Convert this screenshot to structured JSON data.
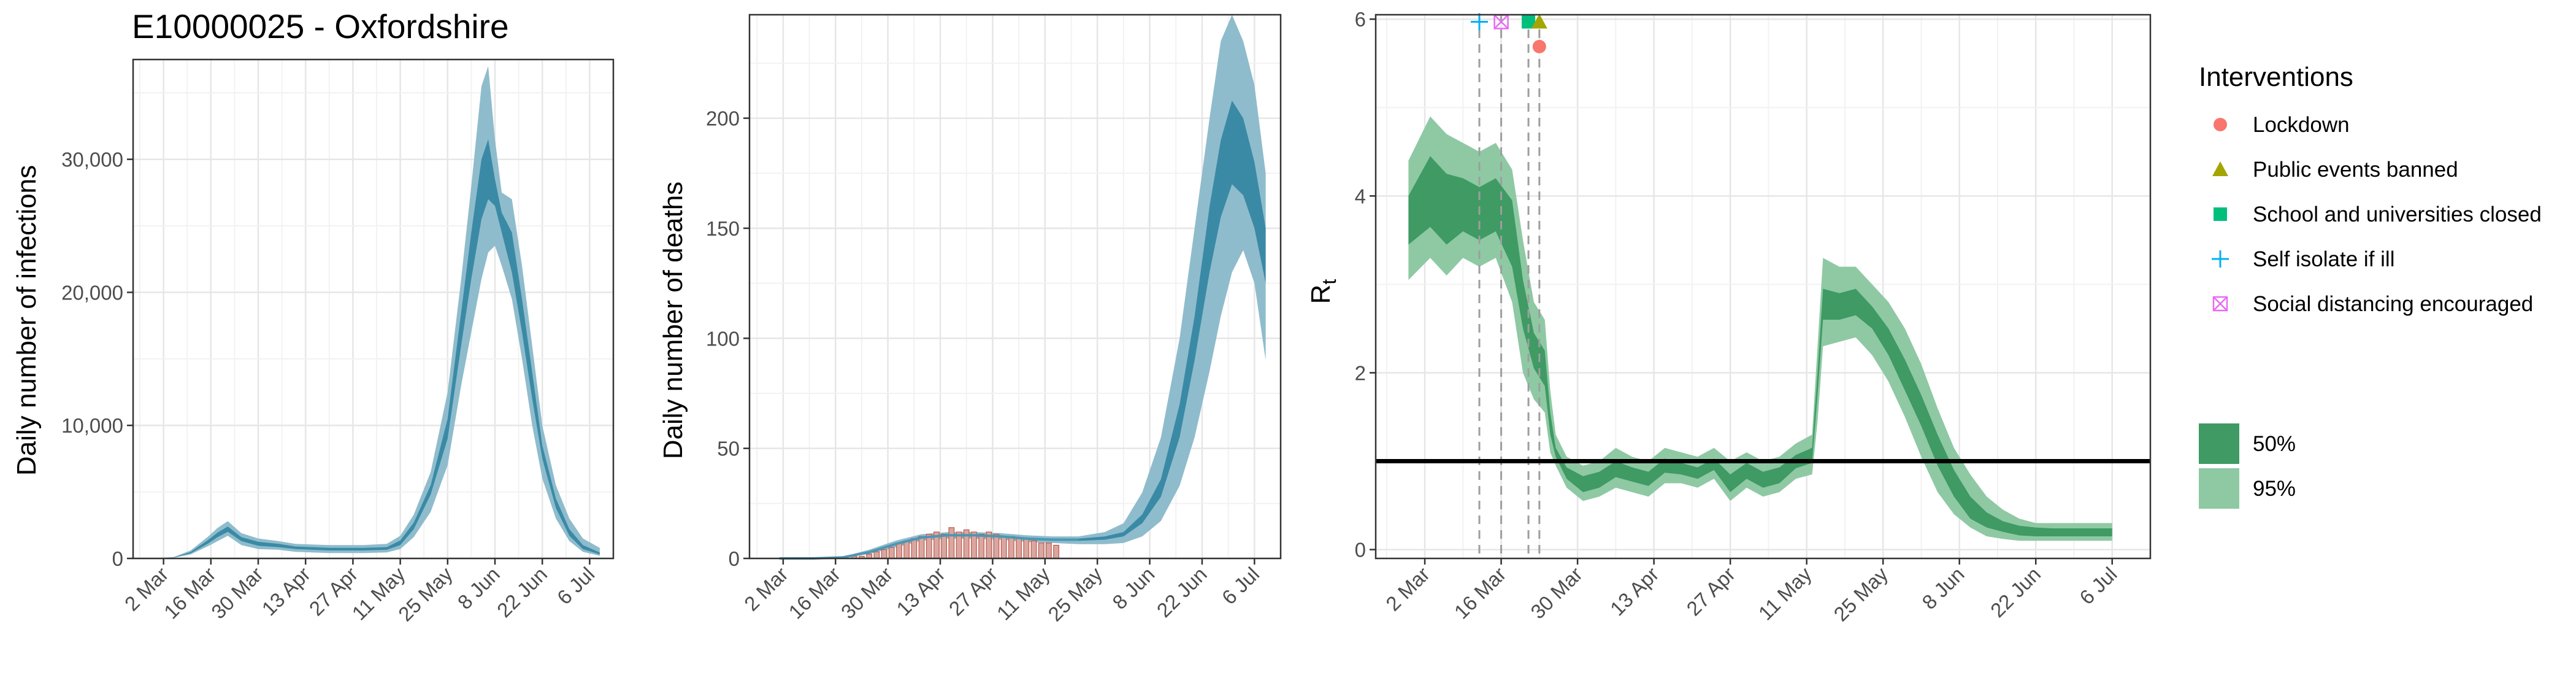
{
  "title": "E10000025 - Oxfordshire",
  "colors": {
    "blue_band95": "#8fbccc",
    "blue_band50": "#3a8aa6",
    "blue_line": "#4b97b3",
    "bar_fill": "#d9a79f",
    "bar_stroke": "#c0554a",
    "green_band95": "#8ec9a3",
    "green_band50": "#3f9a64",
    "grid_major": "#e6e6e6",
    "grid_minor": "#f2f2f2",
    "panel_border": "#333333",
    "vline": "#9e9e9e",
    "lockdown": "#f8766d",
    "public_events": "#a3a500",
    "schools": "#00bf7d",
    "self_isolate": "#00b0f6",
    "social_distancing": "#e76bf3"
  },
  "date_ticks": [
    "2 Mar",
    "16 Mar",
    "30 Mar",
    "13 Apr",
    "27 Apr",
    "11 May",
    "25 May",
    "8 Jun",
    "22 Jun",
    "6 Jul"
  ],
  "chart_data": [
    {
      "type": "area",
      "panel": "infections",
      "title": "E10000025 - Oxfordshire",
      "ylabel": "Daily number of infections",
      "xlabel": "",
      "xlim": [
        "2020-02-22",
        "2020-07-13"
      ],
      "ylim": [
        0,
        37500
      ],
      "y_ticks": [
        0,
        10000,
        20000,
        30000
      ],
      "y_tick_labels": [
        "0",
        "10,000",
        "20,000",
        "30,000"
      ],
      "x_tick_labels": [
        "2 Mar",
        "16 Mar",
        "30 Mar",
        "13 Apr",
        "27 Apr",
        "11 May",
        "25 May",
        "8 Jun",
        "22 Jun",
        "6 Jul"
      ],
      "grid": true,
      "series": [
        {
          "band": "95%",
          "x": [
            "2020-02-28",
            "2020-03-05",
            "2020-03-10",
            "2020-03-15",
            "2020-03-18",
            "2020-03-21",
            "2020-03-25",
            "2020-03-30",
            "2020-04-05",
            "2020-04-10",
            "2020-04-20",
            "2020-04-30",
            "2020-05-07",
            "2020-05-11",
            "2020-05-15",
            "2020-05-20",
            "2020-05-25",
            "2020-05-29",
            "2020-06-01",
            "2020-06-04",
            "2020-06-06",
            "2020-06-08",
            "2020-06-10",
            "2020-06-13",
            "2020-06-16",
            "2020-06-19",
            "2020-06-22",
            "2020-06-26",
            "2020-06-30",
            "2020-07-04",
            "2020-07-09"
          ],
          "lower": [
            0,
            50,
            300,
            900,
            1300,
            1700,
            1000,
            700,
            650,
            500,
            400,
            400,
            450,
            700,
            1600,
            3500,
            7000,
            13000,
            17000,
            21000,
            23000,
            23500,
            22000,
            19500,
            15000,
            10000,
            6000,
            3000,
            1300,
            500,
            200
          ],
          "upper": [
            0,
            100,
            600,
            1600,
            2300,
            2800,
            1900,
            1500,
            1300,
            1100,
            1000,
            1000,
            1100,
            1700,
            3300,
            6500,
            12500,
            21000,
            28000,
            35500,
            37000,
            31500,
            27500,
            27000,
            22000,
            16000,
            10000,
            5500,
            3000,
            1500,
            800
          ]
        },
        {
          "band": "50%",
          "x": [
            "2020-02-28",
            "2020-03-05",
            "2020-03-10",
            "2020-03-15",
            "2020-03-18",
            "2020-03-21",
            "2020-03-25",
            "2020-03-30",
            "2020-04-05",
            "2020-04-10",
            "2020-04-20",
            "2020-04-30",
            "2020-05-07",
            "2020-05-11",
            "2020-05-15",
            "2020-05-20",
            "2020-05-25",
            "2020-05-29",
            "2020-06-01",
            "2020-06-04",
            "2020-06-06",
            "2020-06-08",
            "2020-06-10",
            "2020-06-13",
            "2020-06-16",
            "2020-06-19",
            "2020-06-22",
            "2020-06-26",
            "2020-06-30",
            "2020-07-04",
            "2020-07-09"
          ],
          "lower": [
            0,
            70,
            380,
            1100,
            1600,
            2000,
            1300,
            950,
            850,
            700,
            600,
            600,
            650,
            1000,
            2200,
            4800,
            9000,
            16000,
            21000,
            25500,
            27000,
            26500,
            24500,
            21500,
            17000,
            12000,
            7500,
            3800,
            1700,
            700,
            300
          ],
          "upper": [
            0,
            80,
            480,
            1350,
            1950,
            2400,
            1600,
            1250,
            1100,
            900,
            800,
            800,
            850,
            1350,
            2700,
            5500,
            10500,
            18500,
            24500,
            30000,
            31500,
            28500,
            26000,
            24500,
            19500,
            14000,
            8500,
            4500,
            2200,
            1000,
            450
          ]
        }
      ]
    },
    {
      "type": "area",
      "panel": "deaths",
      "title": "",
      "ylabel": "Daily number of deaths",
      "xlabel": "",
      "xlim": [
        "2020-02-22",
        "2020-07-13"
      ],
      "ylim": [
        0,
        247
      ],
      "y_ticks": [
        0,
        50,
        100,
        150,
        200
      ],
      "y_tick_labels": [
        "0",
        "50",
        "100",
        "150",
        "200"
      ],
      "x_tick_labels": [
        "2 Mar",
        "16 Mar",
        "30 Mar",
        "13 Apr",
        "27 Apr",
        "11 May",
        "25 May",
        "8 Jun",
        "22 Jun",
        "6 Jul"
      ],
      "grid": true,
      "observed_bars": {
        "x": [
          "2020-03-21",
          "2020-03-23",
          "2020-03-25",
          "2020-03-27",
          "2020-03-29",
          "2020-03-31",
          "2020-04-02",
          "2020-04-04",
          "2020-04-06",
          "2020-04-08",
          "2020-04-10",
          "2020-04-12",
          "2020-04-14",
          "2020-04-16",
          "2020-04-18",
          "2020-04-20",
          "2020-04-22",
          "2020-04-24",
          "2020-04-26",
          "2020-04-28",
          "2020-04-30",
          "2020-05-02",
          "2020-05-04",
          "2020-05-06",
          "2020-05-08",
          "2020-05-10",
          "2020-05-12",
          "2020-05-14"
        ],
        "values": [
          1,
          1,
          2,
          3,
          4,
          5,
          7,
          8,
          9,
          10,
          11,
          12,
          11,
          14,
          12,
          13,
          12,
          11,
          12,
          11,
          10,
          10,
          9,
          9,
          8,
          7,
          7,
          6
        ]
      },
      "series": [
        {
          "band": "95%",
          "x": [
            "2020-03-01",
            "2020-03-10",
            "2020-03-18",
            "2020-03-25",
            "2020-04-01",
            "2020-04-08",
            "2020-04-15",
            "2020-04-22",
            "2020-04-29",
            "2020-05-06",
            "2020-05-13",
            "2020-05-20",
            "2020-05-27",
            "2020-06-01",
            "2020-06-06",
            "2020-06-11",
            "2020-06-16",
            "2020-06-20",
            "2020-06-24",
            "2020-06-27",
            "2020-06-30",
            "2020-07-03",
            "2020-07-06",
            "2020-07-09"
          ],
          "lower": [
            0,
            0,
            0.3,
            2,
            5,
            8,
            9,
            9,
            8.5,
            7.5,
            7,
            6.5,
            6.5,
            7,
            10,
            17,
            33,
            55,
            85,
            110,
            130,
            140,
            125,
            90
          ],
          "upper": [
            0,
            0,
            0.8,
            4,
            8,
            11,
            12,
            12,
            11.5,
            10.5,
            10,
            10,
            12,
            16,
            30,
            55,
            100,
            150,
            200,
            235,
            247,
            235,
            215,
            175
          ]
        },
        {
          "band": "50%",
          "x": [
            "2020-03-01",
            "2020-03-10",
            "2020-03-18",
            "2020-03-25",
            "2020-04-01",
            "2020-04-08",
            "2020-04-15",
            "2020-04-22",
            "2020-04-29",
            "2020-05-06",
            "2020-05-13",
            "2020-05-20",
            "2020-05-27",
            "2020-06-01",
            "2020-06-06",
            "2020-06-11",
            "2020-06-16",
            "2020-06-20",
            "2020-06-24",
            "2020-06-27",
            "2020-06-30",
            "2020-07-03",
            "2020-07-06",
            "2020-07-09"
          ],
          "lower": [
            0,
            0,
            0.4,
            2.5,
            6,
            9,
            10,
            10,
            9.5,
            8.5,
            8,
            8,
            8.5,
            10,
            16,
            28,
            55,
            90,
            130,
            155,
            170,
            165,
            150,
            125
          ],
          "upper": [
            0,
            0,
            0.6,
            3.2,
            7,
            10,
            11,
            11,
            10.5,
            9.5,
            9,
            9,
            10,
            12,
            20,
            36,
            70,
            110,
            160,
            190,
            208,
            200,
            180,
            150
          ]
        }
      ]
    },
    {
      "type": "area",
      "panel": "Rt",
      "title": "",
      "ylabel": "Rt",
      "xlabel": "",
      "xlim": [
        "2020-02-22",
        "2020-07-13"
      ],
      "ylim": [
        -0.1,
        6.05
      ],
      "y_ticks": [
        0,
        2,
        4,
        6
      ],
      "y_tick_labels": [
        "0",
        "2",
        "4",
        "6"
      ],
      "x_tick_labels": [
        "2 Mar",
        "16 Mar",
        "30 Mar",
        "13 Apr",
        "27 Apr",
        "11 May",
        "25 May",
        "8 Jun",
        "22 Jun",
        "6 Jul"
      ],
      "grid": true,
      "reference_line": 1,
      "series": [
        {
          "band": "95%",
          "x": [
            "2020-02-28",
            "2020-03-03",
            "2020-03-06",
            "2020-03-09",
            "2020-03-12",
            "2020-03-15",
            "2020-03-18",
            "2020-03-20",
            "2020-03-22",
            "2020-03-24",
            "2020-03-25",
            "2020-03-26",
            "2020-03-28",
            "2020-03-31",
            "2020-04-03",
            "2020-04-06",
            "2020-04-09",
            "2020-04-12",
            "2020-04-15",
            "2020-04-18",
            "2020-04-21",
            "2020-04-24",
            "2020-04-27",
            "2020-04-30",
            "2020-05-03",
            "2020-05-06",
            "2020-05-09",
            "2020-05-12",
            "2020-05-13",
            "2020-05-14",
            "2020-05-17",
            "2020-05-20",
            "2020-05-23",
            "2020-05-26",
            "2020-05-29",
            "2020-06-01",
            "2020-06-04",
            "2020-06-07",
            "2020-06-10",
            "2020-06-13",
            "2020-06-16",
            "2020-06-19",
            "2020-06-22",
            "2020-06-25",
            "2020-06-28",
            "2020-07-01",
            "2020-07-04",
            "2020-07-06"
          ],
          "lower": [
            3.05,
            3.3,
            3.1,
            3.3,
            3.2,
            3.3,
            2.8,
            2.0,
            1.7,
            1.55,
            1.1,
            0.95,
            0.7,
            0.55,
            0.6,
            0.7,
            0.65,
            0.6,
            0.75,
            0.75,
            0.7,
            0.8,
            0.55,
            0.7,
            0.6,
            0.65,
            0.8,
            0.85,
            1.45,
            2.3,
            2.35,
            2.4,
            2.2,
            1.9,
            1.5,
            1.05,
            0.65,
            0.4,
            0.25,
            0.15,
            0.12,
            0.1,
            0.1,
            0.1,
            0.1,
            0.1,
            0.1,
            0.1
          ],
          "upper": [
            4.4,
            4.9,
            4.7,
            4.6,
            4.5,
            4.6,
            4.3,
            3.5,
            2.8,
            2.6,
            1.8,
            1.3,
            1.05,
            0.95,
            1.0,
            1.15,
            1.05,
            1.0,
            1.15,
            1.1,
            1.05,
            1.15,
            1.0,
            1.1,
            1.0,
            1.05,
            1.2,
            1.3,
            2.3,
            3.3,
            3.2,
            3.2,
            3.0,
            2.8,
            2.5,
            2.1,
            1.6,
            1.15,
            0.85,
            0.6,
            0.45,
            0.35,
            0.3,
            0.3,
            0.3,
            0.3,
            0.3,
            0.3
          ]
        },
        {
          "band": "50%",
          "x": [
            "2020-02-28",
            "2020-03-03",
            "2020-03-06",
            "2020-03-09",
            "2020-03-12",
            "2020-03-15",
            "2020-03-18",
            "2020-03-20",
            "2020-03-22",
            "2020-03-24",
            "2020-03-25",
            "2020-03-26",
            "2020-03-28",
            "2020-03-31",
            "2020-04-03",
            "2020-04-06",
            "2020-04-09",
            "2020-04-12",
            "2020-04-15",
            "2020-04-18",
            "2020-04-21",
            "2020-04-24",
            "2020-04-27",
            "2020-04-30",
            "2020-05-03",
            "2020-05-06",
            "2020-05-09",
            "2020-05-12",
            "2020-05-13",
            "2020-05-14",
            "2020-05-17",
            "2020-05-20",
            "2020-05-23",
            "2020-05-26",
            "2020-05-29",
            "2020-06-01",
            "2020-06-04",
            "2020-06-07",
            "2020-06-10",
            "2020-06-13",
            "2020-06-16",
            "2020-06-19",
            "2020-06-22",
            "2020-06-25",
            "2020-06-28",
            "2020-07-01",
            "2020-07-04",
            "2020-07-06"
          ],
          "lower": [
            3.45,
            3.65,
            3.45,
            3.6,
            3.5,
            3.6,
            3.2,
            2.5,
            2.05,
            1.85,
            1.3,
            1.05,
            0.8,
            0.65,
            0.7,
            0.82,
            0.77,
            0.72,
            0.87,
            0.85,
            0.8,
            0.9,
            0.65,
            0.8,
            0.7,
            0.75,
            0.92,
            0.98,
            1.75,
            2.6,
            2.6,
            2.65,
            2.5,
            2.2,
            1.8,
            1.4,
            0.95,
            0.6,
            0.35,
            0.25,
            0.2,
            0.16,
            0.15,
            0.15,
            0.15,
            0.15,
            0.15,
            0.15
          ],
          "upper": [
            4.0,
            4.45,
            4.25,
            4.2,
            4.1,
            4.2,
            3.95,
            3.05,
            2.45,
            2.25,
            1.55,
            1.15,
            0.93,
            0.83,
            0.88,
            1.0,
            0.93,
            0.88,
            1.03,
            0.98,
            0.93,
            1.03,
            0.85,
            0.98,
            0.88,
            0.93,
            1.07,
            1.15,
            2.0,
            2.95,
            2.9,
            2.95,
            2.75,
            2.5,
            2.15,
            1.75,
            1.3,
            0.9,
            0.6,
            0.42,
            0.32,
            0.27,
            0.25,
            0.24,
            0.24,
            0.24,
            0.24,
            0.24
          ]
        }
      ],
      "interventions": [
        {
          "name": "Self isolate if ill",
          "date": "2020-03-12",
          "y": 5.97,
          "shape": "plus",
          "color_key": "self_isolate"
        },
        {
          "name": "Social distancing encouraged",
          "date": "2020-03-16",
          "y": 5.97,
          "shape": "boxx",
          "color_key": "social_distancing"
        },
        {
          "name": "School and universities closed",
          "date": "2020-03-21",
          "y": 5.97,
          "shape": "square",
          "color_key": "schools"
        },
        {
          "name": "Public events banned",
          "date": "2020-03-23",
          "y": 5.97,
          "shape": "triangle",
          "color_key": "public_events"
        },
        {
          "name": "Lockdown",
          "date": "2020-03-23",
          "y": 5.69,
          "shape": "circle",
          "color_key": "lockdown"
        }
      ],
      "vlines": [
        "2020-03-12",
        "2020-03-16",
        "2020-03-21",
        "2020-03-23"
      ]
    }
  ],
  "legend": {
    "title": "Interventions",
    "items": [
      {
        "label": "Lockdown",
        "shape": "circle",
        "color_key": "lockdown"
      },
      {
        "label": "Public events banned",
        "shape": "triangle",
        "color_key": "public_events"
      },
      {
        "label": "School and universities closed",
        "shape": "square",
        "color_key": "schools"
      },
      {
        "label": "Self isolate if ill",
        "shape": "plus",
        "color_key": "self_isolate"
      },
      {
        "label": "Social distancing encouraged",
        "shape": "boxx",
        "color_key": "social_distancing"
      }
    ],
    "bands": [
      {
        "label": "50%",
        "color_key": "green_band50"
      },
      {
        "label": "95%",
        "color_key": "green_band95"
      }
    ]
  }
}
